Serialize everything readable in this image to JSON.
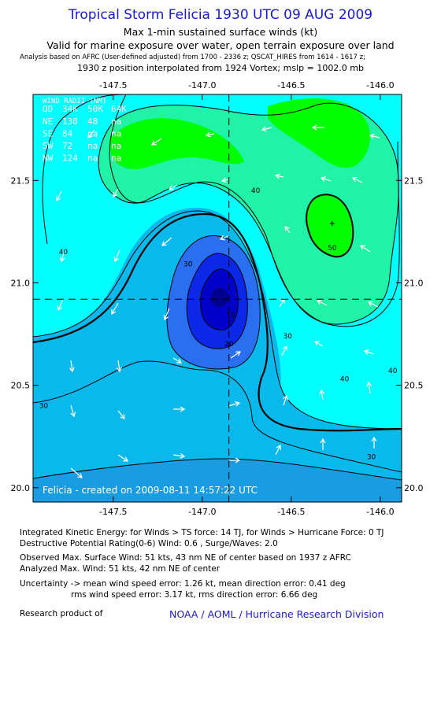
{
  "header": {
    "title": "Tropical Storm Felicia 1930 UTC 09 AUG 2009",
    "subtitle1": "Max 1-min sustained surface winds (kt)",
    "subtitle2": "Valid for marine exposure over water, open terrain exposure over land",
    "analysis_note": "Analysis based on  AFRC (User-defined adjusted) from 1700 - 2336 z;  QSCAT_HIRES from 1614 - 1617 z;",
    "position_note": "1930 z position interpolated from 1924 Vortex; mslp = 1002.0 mb"
  },
  "chart_data": {
    "type": "contour",
    "x_ticks": [
      "-147.5",
      "-147.0",
      "-146.5",
      "-146.0"
    ],
    "x_tick_values": [
      -147.5,
      -147.0,
      -146.5,
      -146.0
    ],
    "y_ticks": [
      "21.5",
      "21.0",
      "20.5",
      "20.0"
    ],
    "y_tick_values": [
      21.5,
      21.0,
      20.5,
      20.0
    ],
    "xlim": [
      -147.95,
      -145.88
    ],
    "ylim": [
      19.93,
      21.92
    ],
    "center": {
      "lon": -146.85,
      "lat": 20.92
    },
    "wind_max_center": {
      "lon": -146.27,
      "lat": 21.29
    },
    "contour_labels": [
      {
        "text": "40",
        "lon": -146.7,
        "lat": 21.44
      },
      {
        "text": "50",
        "lon": -146.27,
        "lat": 21.16
      },
      {
        "text": "30",
        "lon": -147.08,
        "lat": 21.08
      },
      {
        "text": "40",
        "lon": -147.78,
        "lat": 21.14
      },
      {
        "text": "10",
        "lon": -146.84,
        "lat": 20.83
      },
      {
        "text": "20",
        "lon": -146.85,
        "lat": 20.69
      },
      {
        "text": "30",
        "lon": -146.52,
        "lat": 20.73
      },
      {
        "text": "40",
        "lon": -146.2,
        "lat": 20.52
      },
      {
        "text": "40",
        "lon": -145.93,
        "lat": 20.56
      },
      {
        "text": "30",
        "lon": -147.89,
        "lat": 20.39
      },
      {
        "text": "30",
        "lon": -146.05,
        "lat": 20.14
      }
    ],
    "wind_radii_table": {
      "title": "WIND RADII (NM)",
      "header": [
        "QD",
        "34K",
        "50K",
        "64K"
      ],
      "rows": [
        [
          "NE",
          "130",
          "48",
          "na"
        ],
        [
          "SE",
          "84",
          "na",
          "na"
        ],
        [
          "SW",
          "72",
          "na",
          "na"
        ],
        [
          "NW",
          "124",
          "na",
          "na"
        ]
      ]
    },
    "credit_line": "Felicia - created on 2009-08-11 14:57:22 UTC",
    "colors": {
      "v0_10": "#0000c8",
      "v10_20": "#0a28e6",
      "v20_30": "#2a6ef2",
      "v30_40": "#0ab9ec",
      "v40_50": "#00ffff",
      "v50_60": "#20f2a8",
      "v60_70": "#00ff00",
      "band_lower": "#1a9ce2"
    }
  },
  "stats": {
    "ike": "Integrated Kinetic Energy:  for Winds > TS force: 14 TJ,  for Winds > Hurricane Force: 0 TJ",
    "dpr": "Destructive Potential Rating(0-6)   Wind: 0.6 , Surge/Waves: 2.0",
    "obs_max": "Observed Max. Surface Wind: 51 kts, 43 nm NE of center based on 1937 z AFRC",
    "an_max": "Analyzed Max. Wind: 51 kts, 42 nm NE of center",
    "unc1": "Uncertainty -> mean wind speed error: 1.26 kt,   mean direction error: 0.41 deg",
    "unc2": "rms wind speed error: 3.17 kt,   rms direction error: 6.66 deg",
    "research": "Research product of",
    "org": "NOAA / AOML / Hurricane Research Division"
  }
}
